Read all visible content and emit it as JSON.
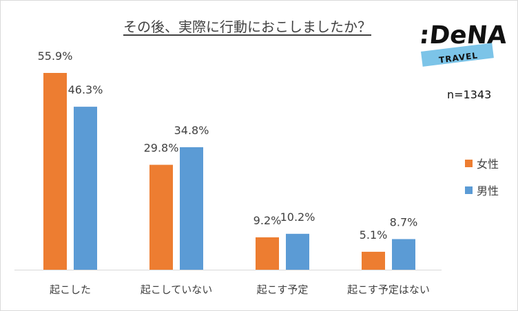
{
  "chart_data": {
    "type": "bar",
    "title": "その後、実際に行動におこしましたか？",
    "sample_size": "n=1343",
    "categories": [
      "起こした",
      "起こしていない",
      "起こす予定",
      "起こす予定はない"
    ],
    "series": [
      {
        "name": "女性",
        "values": [
          55.9,
          29.8,
          9.2,
          5.1
        ],
        "labels": [
          "55.9%",
          "29.8%",
          "9.2%",
          "5.1%"
        ],
        "color": "#ed7d31"
      },
      {
        "name": "男性",
        "values": [
          46.3,
          34.8,
          10.2,
          8.7
        ],
        "labels": [
          "46.3%",
          "34.8%",
          "10.2%",
          "8.7%"
        ],
        "color": "#5b9bd5"
      }
    ],
    "ylim": [
      0,
      55.9
    ],
    "grid": false,
    "legend_placement": "right"
  },
  "logo": {
    "main": ":DeNA",
    "sub": "TRAVEL"
  }
}
